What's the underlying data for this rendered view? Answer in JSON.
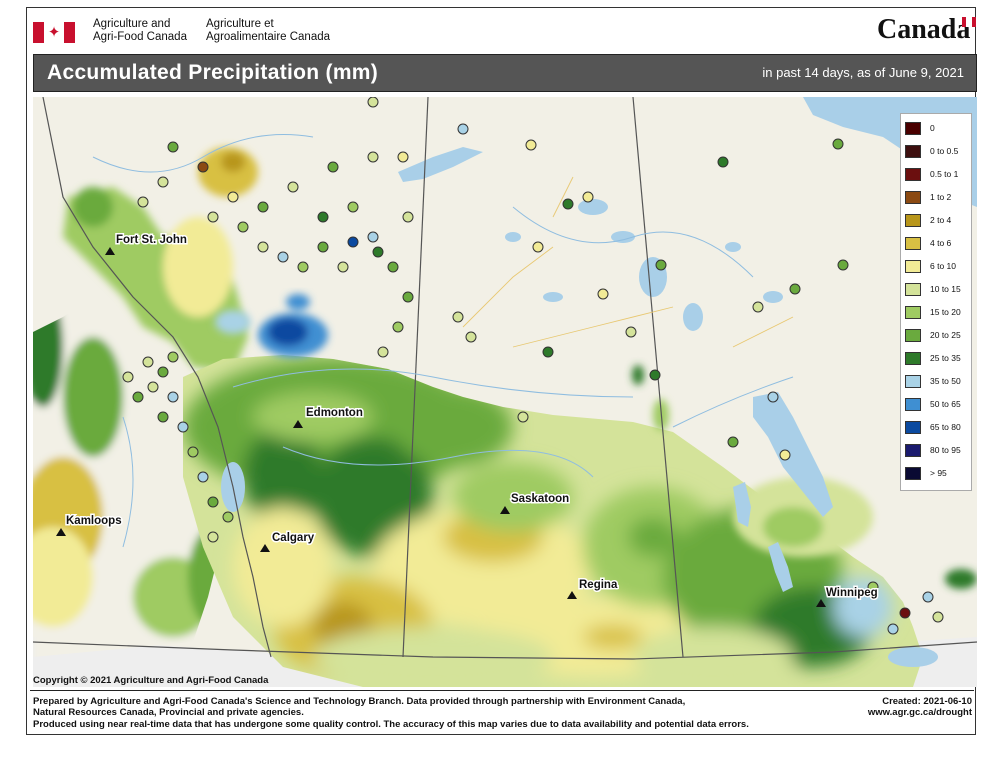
{
  "header": {
    "department_en": [
      "Agriculture and",
      "Agri-Food Canada"
    ],
    "department_fr": [
      "Agriculture et",
      "Agroalimentaire Canada"
    ],
    "wordmark": "Canada"
  },
  "banner": {
    "title": "Accumulated Precipitation (mm)",
    "subtitle": "in past 14 days, as of June 9, 2021"
  },
  "map": {
    "cities": [
      {
        "name": "Fort St. John"
      },
      {
        "name": "Edmonton"
      },
      {
        "name": "Kamloops"
      },
      {
        "name": "Calgary"
      },
      {
        "name": "Saskatoon"
      },
      {
        "name": "Regina"
      },
      {
        "name": "Winnipeg"
      }
    ],
    "colors": {
      "land": "#f2f0e6",
      "water": "#a9cfe8",
      "river": "#8fbde0",
      "border": "#555555",
      "road": "#e8c872"
    }
  },
  "legend": [
    {
      "label": "0",
      "color": "#4a0000"
    },
    {
      "label": "0 to 0.5",
      "color": "#3d0f0f"
    },
    {
      "label": "0.5 to 1",
      "color": "#6b0f0f"
    },
    {
      "label": "1 to 2",
      "color": "#8b4a12"
    },
    {
      "label": "2 to 4",
      "color": "#b8961a"
    },
    {
      "label": "4 to 6",
      "color": "#d8c043"
    },
    {
      "label": "6 to 10",
      "color": "#f2eb96"
    },
    {
      "label": "10 to 15",
      "color": "#d4e39a"
    },
    {
      "label": "15 to 20",
      "color": "#9fcb62"
    },
    {
      "label": "20 to 25",
      "color": "#6aaa3e"
    },
    {
      "label": "25 to 35",
      "color": "#2e7a2a"
    },
    {
      "label": "35 to 50",
      "color": "#a9d2e6"
    },
    {
      "label": "50 to 65",
      "color": "#3f8fd2"
    },
    {
      "label": "65 to 80",
      "color": "#0b4aa0"
    },
    {
      "label": "80 to 95",
      "color": "#1a1a6e"
    },
    {
      "label": "> 95",
      "color": "#0a0a33"
    }
  ],
  "copyright": "Copyright © 2021 Agriculture and Agri-Food Canada",
  "footer": {
    "lines": [
      "Prepared by Agriculture and Agri-Food Canada's Science and Technology Branch. Data provided through partnership with Environment Canada,",
      "Natural Resources Canada, Provincial and private agencies.",
      "Produced using near real-time data that has undergone some quality control. The accuracy of this map varies due to data availability and potential data errors."
    ],
    "created": "Created: 2021-06-10",
    "url": "www.agr.gc.ca/drought"
  }
}
